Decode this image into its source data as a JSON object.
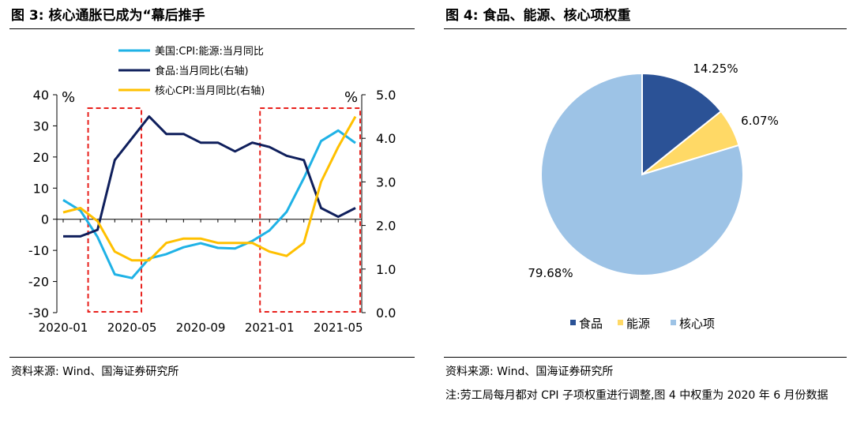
{
  "left_title": "图 3:  核心通胀已成为“幕后推手",
  "right_title": "图 4:  食品、能源、核心项权重",
  "left_source": "资料来源:  Wind、国海证券研究所",
  "right_source": "资料来源:  Wind、国海证券研究所",
  "right_note": "注:劳工局每月都对 CPI 子项权重进行调整,图 4 中权重为 2020 年 6 月份数据",
  "colors": {
    "us_energy": "#1fb2e6",
    "food": "#0f1f5c",
    "core": "#ffc000",
    "highlight": "#e8201c",
    "pie_food": "#2b5296",
    "pie_energy": "#ffd966",
    "pie_core": "#9dc3e6"
  },
  "chart_data": [
    {
      "type": "line",
      "left_unit": "%",
      "right_unit": "%",
      "left_ylim": [
        -30,
        40
      ],
      "right_ylim": [
        0.0,
        5.0
      ],
      "left_ticks": [
        "40",
        "30",
        "20",
        "10",
        "0",
        "-10",
        "-20",
        "-30"
      ],
      "right_ticks": [
        "5.0",
        "4.0",
        "3.0",
        "2.0",
        "1.0",
        "0.0"
      ],
      "x_tick_labels": [
        "2020-01",
        "2020-05",
        "2020-09",
        "2021-01",
        "2021-05"
      ],
      "x": [
        "2020-01",
        "2020-02",
        "2020-03",
        "2020-04",
        "2020-05",
        "2020-06",
        "2020-07",
        "2020-08",
        "2020-09",
        "2020-10",
        "2020-11",
        "2020-12",
        "2021-01",
        "2021-02",
        "2021-03",
        "2021-04",
        "2021-05",
        "2021-06"
      ],
      "series": [
        {
          "name": "美国:CPI:能源:当月同比",
          "axis": "left",
          "values": [
            6.2,
            2.8,
            -5.7,
            -17.7,
            -18.9,
            -12.6,
            -11.2,
            -9.0,
            -7.7,
            -9.2,
            -9.4,
            -7.0,
            -3.6,
            2.4,
            13.2,
            25.1,
            28.5,
            24.5
          ]
        },
        {
          "name": "食品:当月同比(右轴)",
          "axis": "right",
          "values": [
            1.75,
            1.75,
            1.9,
            3.5,
            4.0,
            4.5,
            4.1,
            4.1,
            3.9,
            3.9,
            3.7,
            3.9,
            3.8,
            3.6,
            3.5,
            2.4,
            2.2,
            2.4
          ]
        },
        {
          "name": "核心CPI:当月同比(右轴)",
          "axis": "right",
          "values": [
            2.3,
            2.4,
            2.1,
            1.4,
            1.2,
            1.2,
            1.6,
            1.7,
            1.7,
            1.6,
            1.6,
            1.6,
            1.4,
            1.3,
            1.6,
            3.0,
            3.8,
            4.5
          ]
        }
      ],
      "highlight_ranges": [
        [
          "2020-03",
          "2020-05"
        ],
        [
          "2021-01",
          "2021-06"
        ]
      ],
      "legend_position": "top"
    },
    {
      "type": "pie",
      "labels": [
        "食品",
        "能源",
        "核心项"
      ],
      "values": [
        14.25,
        6.07,
        79.68
      ],
      "value_labels": [
        "14.25%",
        "6.07%",
        "79.68%"
      ],
      "legend_position": "bottom"
    }
  ]
}
